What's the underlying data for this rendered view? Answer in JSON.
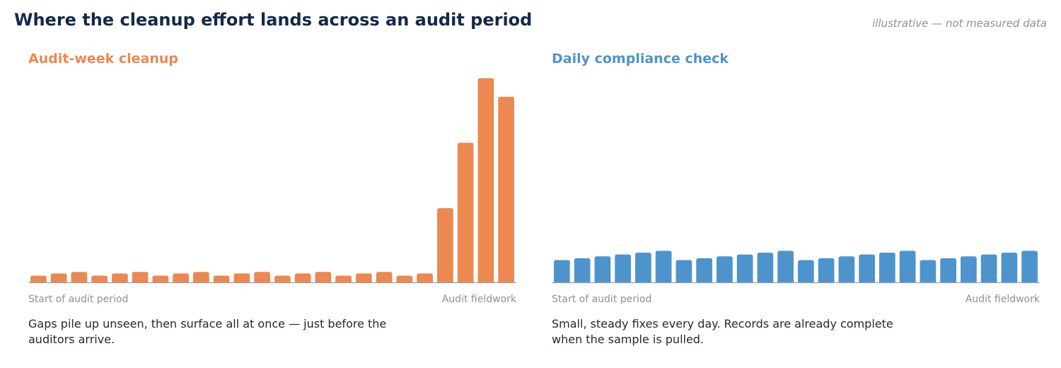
{
  "title": "Where the cleanup effort lands across an audit period",
  "note": "illustrative — not measured data",
  "chart_data": [
    {
      "type": "bar",
      "title": "Audit-week cleanup",
      "color": "#ec8850",
      "x_start_label": "Start of audit period",
      "x_end_label": "Audit fieldwork",
      "caption": "Gaps pile up unseen, then surface all at once — just before the auditors arrive.",
      "values": [
        0.9,
        1.2,
        1.4,
        0.9,
        1.2,
        1.4,
        0.9,
        1.2,
        1.4,
        0.9,
        1.2,
        1.4,
        0.9,
        1.2,
        1.4,
        0.9,
        1.2,
        1.4,
        0.9,
        1.2,
        10.0,
        18.8,
        27.5,
        25.0
      ],
      "ylim": [
        0,
        28.5
      ],
      "grid": false
    },
    {
      "type": "bar",
      "title": "Daily compliance check",
      "color": "#4d94cc",
      "x_start_label": "Start of audit period",
      "x_end_label": "Audit fieldwork",
      "caption": "Small, steady fixes every day. Records are already complete when the sample is pulled.",
      "values": [
        3.0,
        3.25,
        3.5,
        3.75,
        4.0,
        4.25,
        3.0,
        3.25,
        3.5,
        3.75,
        4.0,
        4.25,
        3.0,
        3.25,
        3.5,
        3.75,
        4.0,
        4.25,
        3.0,
        3.25,
        3.5,
        3.75,
        4.0,
        4.25
      ],
      "ylim": [
        0,
        28.5
      ],
      "grid": false
    }
  ]
}
